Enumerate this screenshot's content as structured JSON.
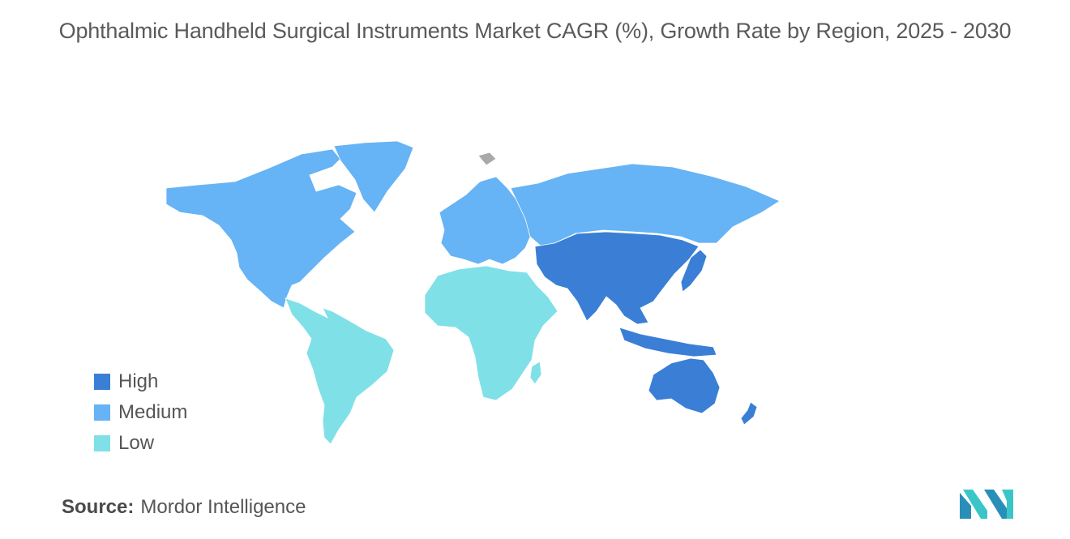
{
  "title": "Ophthalmic Handheld Surgical Instruments Market CAGR (%), Growth Rate by Region, 2025 - 2030",
  "legend": {
    "items": [
      {
        "label": "High",
        "color": "#3a7fd5"
      },
      {
        "label": "Medium",
        "color": "#66b3f5"
      },
      {
        "label": "Low",
        "color": "#7fe0e8"
      }
    ]
  },
  "colors": {
    "high": "#3a7fd5",
    "medium": "#66b3f5",
    "low": "#7fe0e8",
    "no_data": "#a9a9a9"
  },
  "regions": {
    "North America": "medium",
    "Europe": "medium",
    "Russia": "medium",
    "Greenland": "medium",
    "Asia Pacific": "high",
    "Australia": "high",
    "Latin America": "low",
    "Middle East and Africa": "low"
  },
  "source": {
    "label": "Source:",
    "value": "Mordor Intelligence"
  },
  "logo_icon": "mordor-intelligence-logo"
}
